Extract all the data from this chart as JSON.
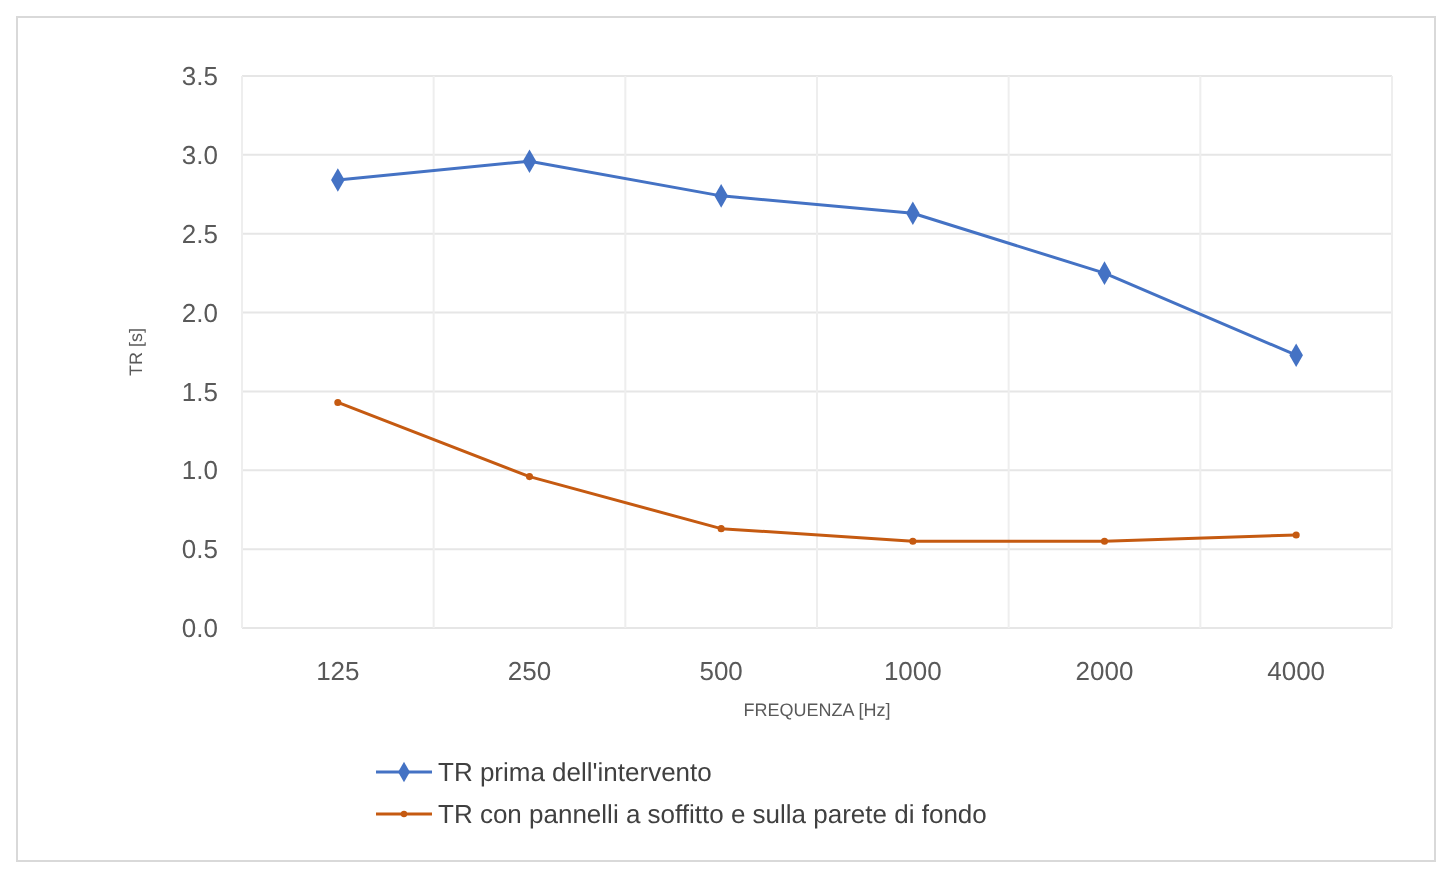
{
  "chart_data": {
    "type": "line",
    "xlabel": "FREQUENZA [Hz]",
    "ylabel": "TR [s]",
    "categories": [
      "125",
      "250",
      "500",
      "1000",
      "2000",
      "4000"
    ],
    "series": [
      {
        "name": "TR prima dell'intervento",
        "color": "#4472c4",
        "marker": "diamond",
        "values": [
          2.84,
          2.96,
          2.74,
          2.63,
          2.25,
          1.73
        ]
      },
      {
        "name": "TR con pannelli a soffitto e sulla parete di fondo",
        "color": "#c55a11",
        "marker": "circle",
        "values": [
          1.43,
          0.96,
          0.63,
          0.55,
          0.55,
          0.59
        ]
      }
    ],
    "ylim": [
      0,
      3.5
    ],
    "yticks": [
      {
        "value": 0,
        "label": "0.0"
      },
      {
        "value": 0.5,
        "label": "0.5"
      },
      {
        "value": 1,
        "label": "1.0"
      },
      {
        "value": 1.5,
        "label": "1.5"
      },
      {
        "value": 2,
        "label": "2.0"
      },
      {
        "value": 2.5,
        "label": "2.5"
      },
      {
        "value": 3,
        "label": "3.0"
      },
      {
        "value": 3.5,
        "label": "3.5"
      }
    ],
    "grid": true,
    "legend": "bottom"
  }
}
